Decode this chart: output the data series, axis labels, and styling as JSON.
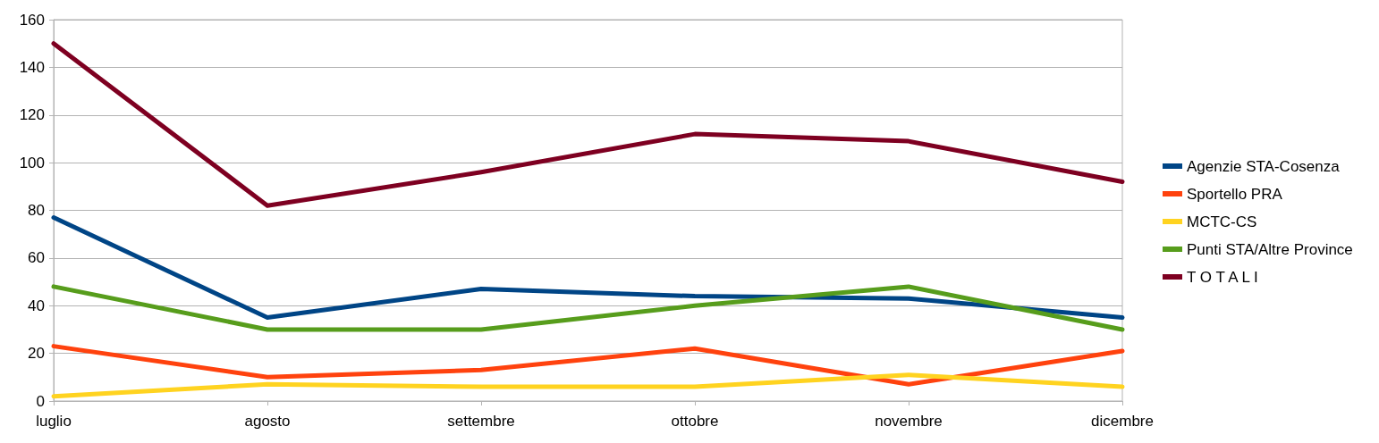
{
  "chart_data": {
    "type": "line",
    "categories": [
      "luglio",
      "agosto",
      "settembre",
      "ottobre",
      "novembre",
      "dicembre"
    ],
    "series": [
      {
        "name": "Agenzie STA-Cosenza",
        "color": "#004586",
        "values": [
          77,
          35,
          47,
          44,
          43,
          35
        ]
      },
      {
        "name": "Sportello PRA",
        "color": "#ff420e",
        "values": [
          23,
          10,
          13,
          22,
          7,
          21
        ]
      },
      {
        "name": "MCTC-CS",
        "color": "#ffd320",
        "values": [
          2,
          7,
          6,
          6,
          11,
          6
        ]
      },
      {
        "name": "Punti STA/Altre Province",
        "color": "#579d1c",
        "values": [
          48,
          30,
          30,
          40,
          48,
          30
        ]
      },
      {
        "name": "T O T A L I",
        "color": "#7e0021",
        "values": [
          150,
          82,
          96,
          112,
          109,
          92
        ]
      }
    ],
    "ylim": [
      0,
      160
    ],
    "yticks": [
      0,
      20,
      40,
      60,
      80,
      100,
      120,
      140,
      160
    ],
    "grid": "y",
    "legend": "right",
    "marker": "none",
    "line_style": "solid"
  }
}
